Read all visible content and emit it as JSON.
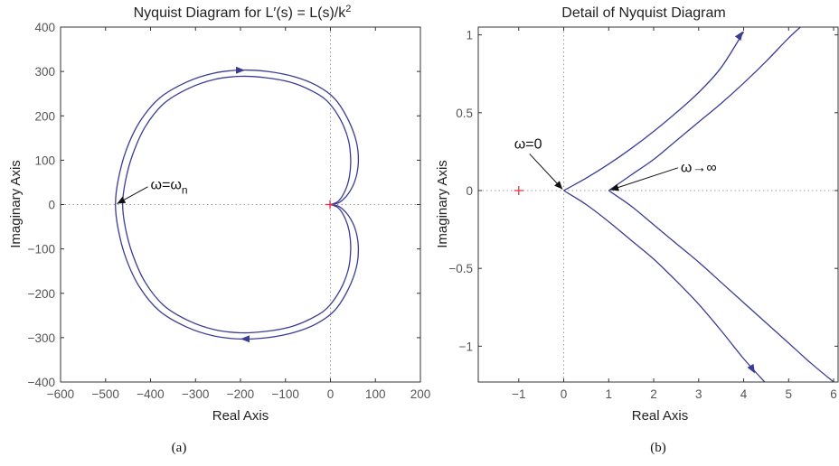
{
  "chart_data": [
    {
      "type": "line",
      "title": "Nyquist Diagram for L′(s) = L(s)/k",
      "title_superscript": "2",
      "xlabel": "Real Axis",
      "ylabel": "Imaginary Axis",
      "xlim": [
        -600,
        200
      ],
      "ylim": [
        -400,
        400
      ],
      "xticks": [
        -600,
        -500,
        -400,
        -300,
        -200,
        -100,
        0,
        100,
        200
      ],
      "yticks": [
        400,
        300,
        200,
        100,
        0,
        -100,
        -200,
        -300,
        -400
      ],
      "grid": false,
      "zero_lines": "dotted",
      "caption": "(a)",
      "critical_point": {
        "x": -1,
        "y": 0,
        "color": "#e0303a"
      },
      "line_color": "#3a3c95",
      "series": [
        {
          "points": [
            [
              0,
              0
            ],
            [
              20,
              5
            ],
            [
              40,
              25
            ],
            [
              55,
              55
            ],
            [
              62,
              95
            ],
            [
              58,
              140
            ],
            [
              40,
              190
            ],
            [
              10,
              238
            ],
            [
              -30,
              268
            ],
            [
              -80,
              288
            ],
            [
              -140,
              300
            ],
            [
              -200,
              303
            ],
            [
              -260,
              296
            ],
            [
              -320,
              276
            ],
            [
              -380,
              240
            ],
            [
              -425,
              185
            ],
            [
              -455,
              120
            ],
            [
              -472,
              55
            ],
            [
              -478,
              0
            ],
            [
              -472,
              -55
            ],
            [
              -455,
              -120
            ],
            [
              -425,
              -185
            ],
            [
              -380,
              -240
            ],
            [
              -320,
              -276
            ],
            [
              -260,
              -296
            ],
            [
              -200,
              -303
            ],
            [
              -140,
              -300
            ],
            [
              -80,
              -288
            ],
            [
              -30,
              -268
            ],
            [
              10,
              -238
            ],
            [
              40,
              -190
            ],
            [
              58,
              -140
            ],
            [
              62,
              -95
            ],
            [
              55,
              -55
            ],
            [
              40,
              -25
            ],
            [
              20,
              -5
            ],
            [
              0,
              0
            ]
          ]
        },
        {
          "points": [
            [
              0,
              0
            ],
            [
              18,
              8
            ],
            [
              33,
              32
            ],
            [
              42,
              62
            ],
            [
              45,
              100
            ],
            [
              40,
              145
            ],
            [
              22,
              192
            ],
            [
              -8,
              234
            ],
            [
              -45,
              258
            ],
            [
              -90,
              276
            ],
            [
              -145,
              286
            ],
            [
              -200,
              289
            ],
            [
              -258,
              282
            ],
            [
              -315,
              262
            ],
            [
              -370,
              228
            ],
            [
              -412,
              175
            ],
            [
              -440,
              112
            ],
            [
              -456,
              52
            ],
            [
              -462,
              0
            ],
            [
              -456,
              -52
            ],
            [
              -440,
              -112
            ],
            [
              -412,
              -175
            ],
            [
              -370,
              -228
            ],
            [
              -315,
              -262
            ],
            [
              -258,
              -282
            ],
            [
              -200,
              -289
            ],
            [
              -145,
              -286
            ],
            [
              -90,
              -276
            ],
            [
              -45,
              -258
            ],
            [
              -8,
              -234
            ],
            [
              22,
              -192
            ],
            [
              40,
              -145
            ],
            [
              45,
              -100
            ],
            [
              42,
              -62
            ],
            [
              33,
              -32
            ],
            [
              18,
              -8
            ],
            [
              0,
              0
            ]
          ]
        }
      ],
      "arrows": [
        {
          "x": -200,
          "y": 303,
          "direction": "right"
        },
        {
          "x": -190,
          "y": -303,
          "direction": "left"
        }
      ],
      "annotations": [
        {
          "text": "ω=ω",
          "subscript": "n",
          "point": [
            -478,
            0
          ],
          "text_at": [
            -400,
            35
          ]
        }
      ]
    },
    {
      "type": "line",
      "title": "Detail of Nyquist Diagram",
      "xlabel": "Real Axis",
      "ylabel": "Imaginary Axis",
      "xlim": [
        -1.9,
        6.1
      ],
      "ylim": [
        -1.23,
        1.05
      ],
      "xticks": [
        -1,
        0,
        1,
        2,
        3,
        4,
        5,
        6
      ],
      "yticks": [
        1,
        0.5,
        0,
        -0.5,
        -1
      ],
      "ytick_labels": [
        "1",
        "0.5",
        "0",
        "−0.5",
        "−1"
      ],
      "xtick_labels": [
        "−1",
        "0",
        "1",
        "2",
        "3",
        "4",
        "5",
        "6"
      ],
      "grid": false,
      "zero_lines": "dotted",
      "caption": "(b)",
      "critical_point": {
        "x": -1,
        "y": 0,
        "color": "#e0303a"
      },
      "line_color": "#3a3c95",
      "series": [
        {
          "points": [
            [
              0,
              0
            ],
            [
              0.5,
              0.08
            ],
            [
              1,
              0.17
            ],
            [
              1.5,
              0.27
            ],
            [
              2,
              0.38
            ],
            [
              2.5,
              0.5
            ],
            [
              3,
              0.63
            ],
            [
              3.5,
              0.79
            ],
            [
              4,
              1.02
            ]
          ]
        },
        {
          "points": [
            [
              0,
              0
            ],
            [
              0.5,
              -0.09
            ],
            [
              1,
              -0.2
            ],
            [
              1.5,
              -0.32
            ],
            [
              2,
              -0.44
            ],
            [
              2.5,
              -0.58
            ],
            [
              3,
              -0.73
            ],
            [
              3.5,
              -0.9
            ],
            [
              4,
              -1.08
            ],
            [
              4.5,
              -1.24
            ]
          ]
        },
        {
          "points": [
            [
              1,
              0
            ],
            [
              1.5,
              0.1
            ],
            [
              2,
              0.2
            ],
            [
              2.5,
              0.32
            ],
            [
              3,
              0.44
            ],
            [
              3.5,
              0.56
            ],
            [
              4,
              0.69
            ],
            [
              4.5,
              0.83
            ],
            [
              5,
              0.98
            ],
            [
              5.3,
              1.06
            ]
          ]
        },
        {
          "points": [
            [
              1,
              0
            ],
            [
              1.5,
              -0.1
            ],
            [
              2,
              -0.22
            ],
            [
              2.5,
              -0.34
            ],
            [
              3,
              -0.46
            ],
            [
              3.5,
              -0.59
            ],
            [
              4,
              -0.72
            ],
            [
              4.5,
              -0.85
            ],
            [
              5,
              -0.98
            ],
            [
              5.5,
              -1.11
            ],
            [
              6,
              -1.23
            ]
          ]
        }
      ],
      "arrows": [
        {
          "x": 3.93,
          "y": 1.0,
          "direction": "up"
        },
        {
          "x": 4.2,
          "y": -1.15,
          "direction": "down"
        }
      ],
      "annotations": [
        {
          "text": "ω=0",
          "point": [
            0,
            0
          ],
          "text_at": [
            -1.1,
            0.27
          ]
        },
        {
          "text": "ω→∞",
          "point": [
            1,
            0
          ],
          "text_at": [
            2.6,
            0.12
          ]
        }
      ]
    }
  ]
}
